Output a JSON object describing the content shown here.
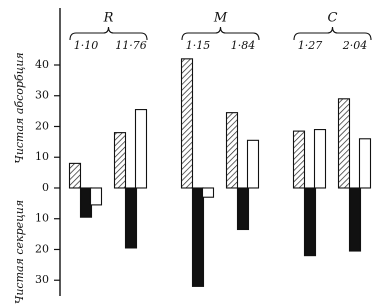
{
  "chart_data": {
    "type": "bar",
    "y_label_top": "Чистая абсорбция",
    "y_label_bottom": "Чистая секреция",
    "groups": [
      "R",
      "M",
      "C"
    ],
    "categories": [
      "1·10",
      "11·76",
      "1·15",
      "1·84",
      "1·27",
      "2·04"
    ],
    "series": [
      {
        "color": "#222222",
        "pattern": "hatch",
        "values": [
          8,
          18,
          42,
          24.5,
          18.5,
          29
        ]
      },
      {
        "color": "#111111",
        "values": [
          -9.5,
          -19.5,
          -32,
          -13.5,
          -22,
          -20.5
        ]
      },
      {
        "color": "#ffffff",
        "values": [
          -5.5,
          null,
          -3,
          null,
          null,
          null
        ]
      },
      {
        "color": "#ffffff",
        "values": [
          null,
          25.5,
          null,
          15.5,
          19,
          16
        ]
      }
    ],
    "ylim": [
      -35,
      58
    ],
    "yticks": [
      40,
      30,
      20,
      10,
      0,
      {
        "value": -10,
        "label": "10"
      },
      {
        "value": -20,
        "label": "20"
      },
      {
        "value": -30,
        "label": "30"
      }
    ]
  }
}
